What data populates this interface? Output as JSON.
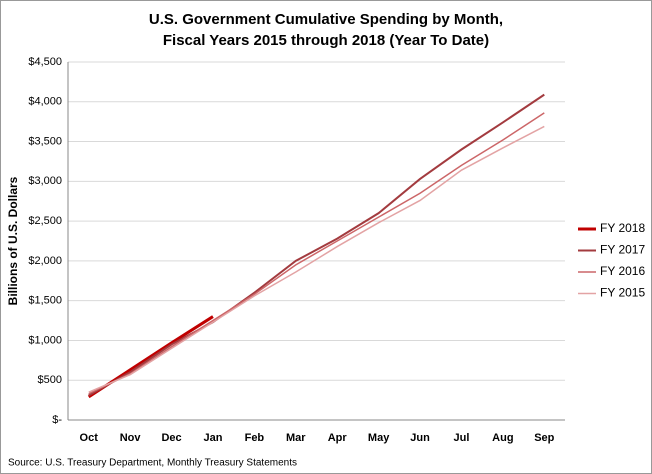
{
  "chart_data": {
    "type": "line",
    "title": [
      "U.S. Government Cumulative Spending by Month,",
      "Fiscal Years 2015 through 2018 (Year To Date)"
    ],
    "y_label": "Billions of U.S. Dollars",
    "source": "Source: U.S. Treasury Department, Monthly Treasury Statements",
    "categories": [
      "Oct",
      "Nov",
      "Dec",
      "Jan",
      "Feb",
      "Mar",
      "Apr",
      "May",
      "Jun",
      "Jul",
      "Aug",
      "Sep"
    ],
    "series": [
      {
        "name": "FY 2018",
        "color": "#c00000",
        "width": 3,
        "values": [
          290,
          630,
          970,
          1300,
          null,
          null,
          null,
          null,
          null,
          null,
          null,
          null
        ]
      },
      {
        "name": "FY 2017",
        "color": "#a33b3f",
        "width": 2,
        "values": [
          310,
          600,
          950,
          1230,
          1600,
          2000,
          2280,
          2600,
          3030,
          3400,
          3740,
          4090
        ]
      },
      {
        "name": "FY 2016",
        "color": "#cc6668",
        "width": 1.5,
        "values": [
          330,
          580,
          920,
          1250,
          1580,
          1950,
          2250,
          2550,
          2850,
          3200,
          3520,
          3860
        ]
      },
      {
        "name": "FY 2015",
        "color": "#e3a3a4",
        "width": 1.5,
        "values": [
          350,
          570,
          900,
          1230,
          1560,
          1860,
          2180,
          2480,
          2760,
          3140,
          3420,
          3690
        ]
      }
    ],
    "ylim": [
      0,
      4500
    ],
    "yticks": [
      {
        "value": 0,
        "label": "$-"
      },
      {
        "value": 500,
        "label": "$500"
      },
      {
        "value": 1000,
        "label": "$1,000"
      },
      {
        "value": 1500,
        "label": "$1,500"
      },
      {
        "value": 2000,
        "label": "$2,000"
      },
      {
        "value": 2500,
        "label": "$2,500"
      },
      {
        "value": 3000,
        "label": "$3,000"
      },
      {
        "value": 3500,
        "label": "$3,500"
      },
      {
        "value": 4000,
        "label": "$4,000"
      },
      {
        "value": 4500,
        "label": "$4,500"
      }
    ],
    "grid": true,
    "legend": "right"
  }
}
